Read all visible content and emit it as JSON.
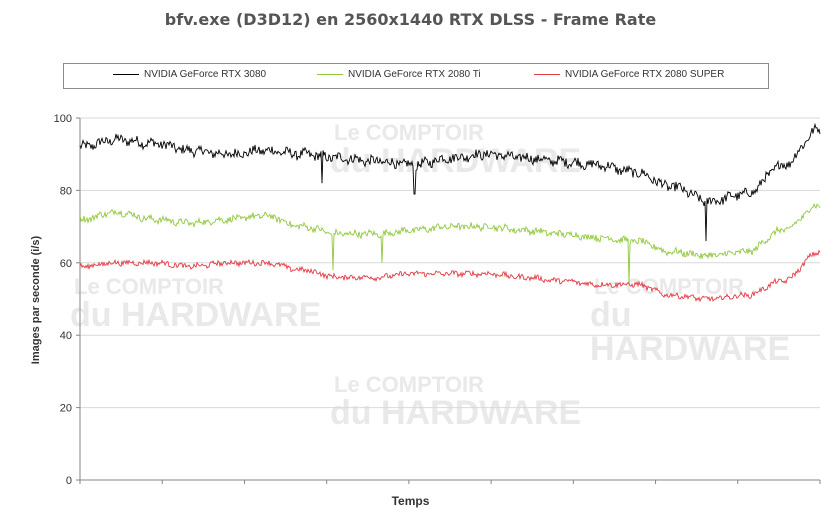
{
  "chart_data": {
    "type": "line",
    "title": "bfv.exe (D3D12) en 2560x1440 RTX DLSS - Frame Rate",
    "xlabel": "Temps",
    "ylabel": "Images par seconde (i/s)",
    "ylim": [
      0,
      100
    ],
    "yticks": [
      "0",
      "20",
      "40",
      "60",
      "80",
      "100"
    ],
    "grid": "horizontal",
    "legend_position": "top",
    "x": [
      0,
      5,
      10,
      15,
      20,
      25,
      30,
      35,
      40,
      45,
      50,
      55,
      60,
      65,
      70,
      75,
      80,
      85,
      90,
      95,
      100
    ],
    "series": [
      {
        "name": "NVIDIA GeForce RTX 3080",
        "color": "#000000",
        "values": [
          92,
          94,
          93,
          91,
          90,
          91,
          90,
          89,
          88,
          87,
          89,
          90,
          89,
          88,
          87,
          85,
          81,
          77,
          79,
          87,
          97
        ]
      },
      {
        "name": "NVIDIA GeForce RTX 2080 Ti",
        "color": "#92c83e",
        "values": [
          72,
          74,
          72,
          71,
          72,
          73,
          70,
          68,
          68,
          69,
          70,
          70,
          69,
          68,
          67,
          66,
          63,
          62,
          63,
          69,
          76
        ]
      },
      {
        "name": "NVIDIA GeForce RTX 2080 SUPER",
        "color": "#e23b44",
        "values": [
          59,
          60,
          60,
          59,
          60,
          60,
          58,
          56,
          56,
          57,
          57,
          57,
          56,
          55,
          54,
          54,
          51,
          50,
          51,
          55,
          63
        ]
      }
    ],
    "dips": [
      {
        "series": 0,
        "x": 32.7,
        "value": 82
      },
      {
        "series": 0,
        "x": 45.2,
        "value": 79
      },
      {
        "series": 0,
        "x": 84.6,
        "value": 66
      },
      {
        "series": 1,
        "x": 34.2,
        "value": 58
      },
      {
        "series": 1,
        "x": 40.8,
        "value": 60
      },
      {
        "series": 1,
        "x": 74.2,
        "value": 54
      }
    ]
  },
  "watermark": {
    "line1": "Le COMPTOIR",
    "line2": "du HARDWARE"
  }
}
